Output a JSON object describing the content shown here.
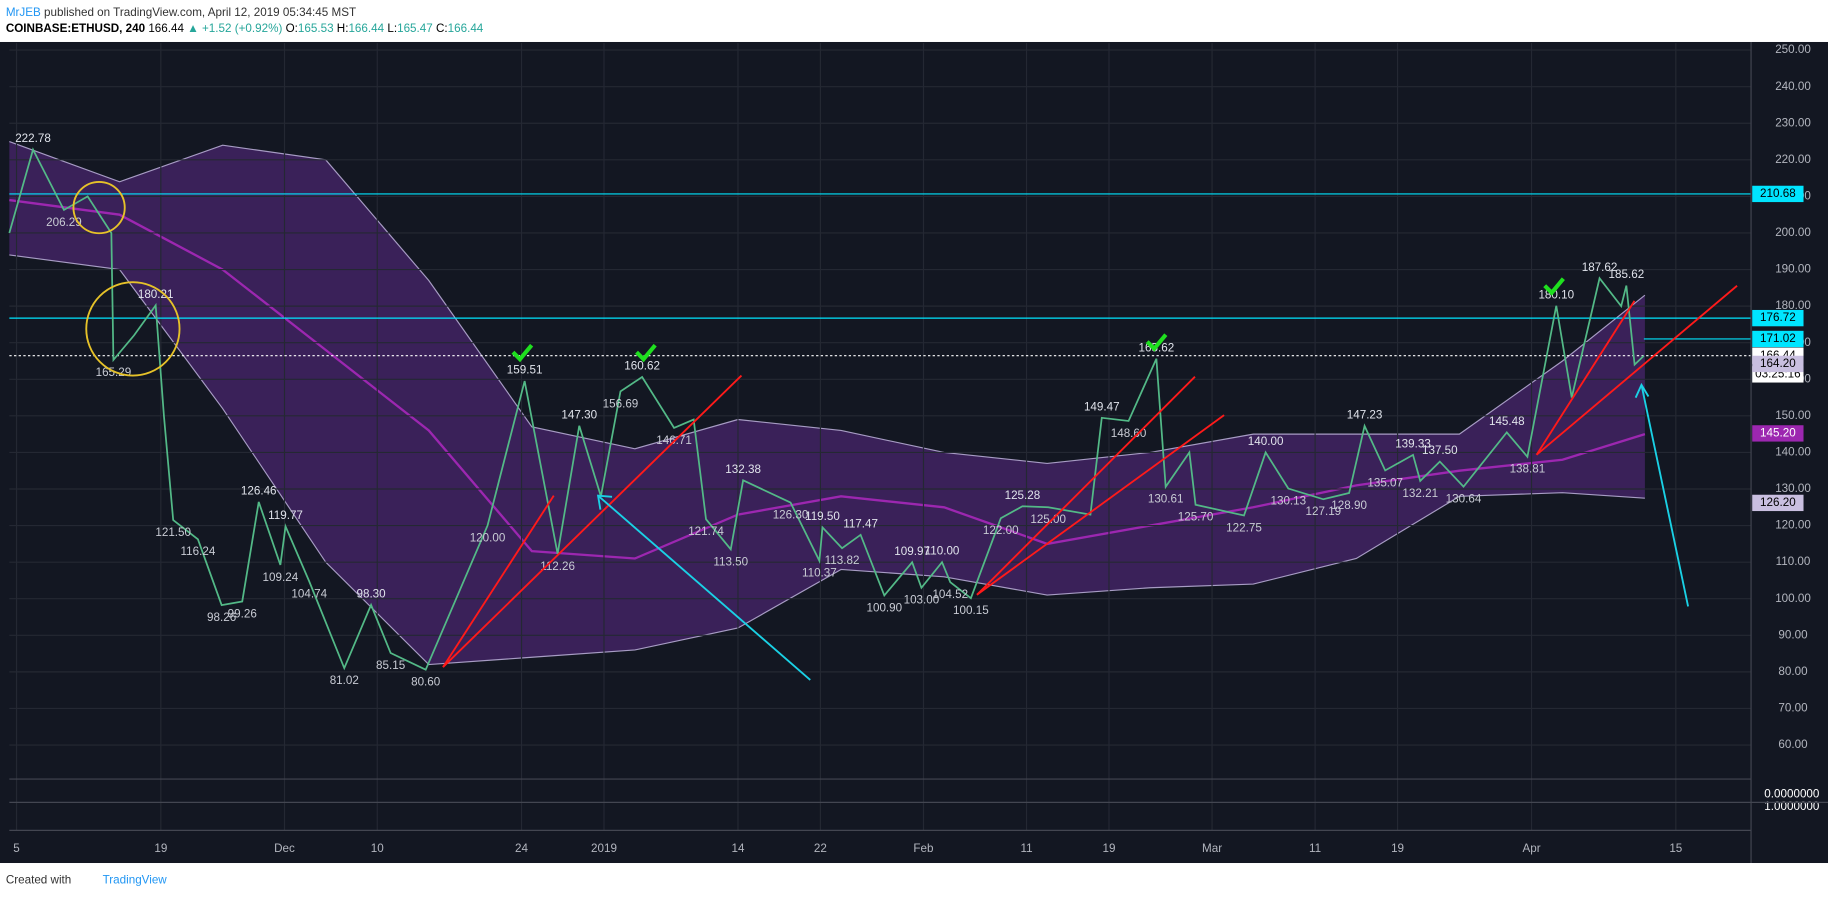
{
  "header": {
    "author": "MrJEB",
    "published": "published on TradingView.com, April 12, 2019 05:34:45 MST",
    "symbol": "COINBASE:ETHUSD, 240",
    "last": 166.44,
    "change": "▲ +1.52 (+0.92%)",
    "open_label": "O:",
    "open": 165.53,
    "high_label": "H:",
    "high": 166.44,
    "low_label": "L:",
    "low": 165.47,
    "close_label": "C:",
    "close": 166.44
  },
  "chart_data": {
    "type": "line",
    "xlim": [
      -0.7,
      168.3
    ],
    "ylim": [
      50.7,
      251.9
    ],
    "grid": true,
    "xticks": [
      {
        "value": 0,
        "label": "5"
      },
      {
        "value": 14,
        "label": "19"
      },
      {
        "value": 26,
        "label": "Dec"
      },
      {
        "value": 35,
        "label": "10"
      },
      {
        "value": 49,
        "label": "24"
      },
      {
        "value": 57,
        "label": "2019"
      },
      {
        "value": 70,
        "label": "14"
      },
      {
        "value": 78,
        "label": "22"
      },
      {
        "value": 88,
        "label": "Feb"
      },
      {
        "value": 98,
        "label": "11"
      },
      {
        "value": 106,
        "label": "19"
      },
      {
        "value": 116,
        "label": "Mar"
      },
      {
        "value": 126,
        "label": "11"
      },
      {
        "value": 134,
        "label": "19"
      },
      {
        "value": 147,
        "label": "Apr"
      },
      {
        "value": 161,
        "label": "15"
      }
    ],
    "yticks": [
      {
        "value": 60,
        "label": "60.00"
      },
      {
        "value": 70,
        "label": "70.00"
      },
      {
        "value": 80,
        "label": "80.00"
      },
      {
        "value": 90,
        "label": "90.00"
      },
      {
        "value": 100,
        "label": "100.00"
      },
      {
        "value": 110,
        "label": "110.00"
      },
      {
        "value": 120,
        "label": "120.00"
      },
      {
        "value": 130,
        "label": "130.00"
      },
      {
        "value": 140,
        "label": "140.00"
      },
      {
        "value": 150,
        "label": "150.00"
      },
      {
        "value": 160,
        "label": "160.00"
      },
      {
        "value": 170,
        "label": "170.00"
      },
      {
        "value": 180,
        "label": "180.00"
      },
      {
        "value": 190,
        "label": "190.00"
      },
      {
        "value": 200,
        "label": "200.00"
      },
      {
        "value": 210,
        "label": "210.00"
      },
      {
        "value": 220,
        "label": "220.00"
      },
      {
        "value": 230,
        "label": "230.00"
      },
      {
        "value": 240,
        "label": "240.00"
      },
      {
        "value": 250,
        "label": "250.00"
      }
    ],
    "pane2_ticks": [
      {
        "value": 0,
        "label": "0.0000000"
      },
      {
        "value": 1,
        "label": "1.0000000"
      }
    ],
    "series": [
      {
        "color": "#53b987",
        "x": [
          -0.7,
          1.6,
          4.6,
          6.9,
          9.2,
          9.4,
          11.4,
          13.5,
          14.3,
          15.2,
          17.6,
          19.9,
          21.9,
          23.5,
          25.6,
          26.1,
          28.4,
          31.8,
          34.4,
          36.3,
          39.7,
          45.7,
          49.3,
          52.5,
          54.6,
          56.7,
          58.6,
          60.7,
          63.8,
          65.7,
          66.9,
          69.3,
          70.5,
          75.1,
          77.9,
          78.2,
          80.1,
          81.9,
          84.2,
          86.9,
          87.8,
          89.8,
          90.6,
          92.6,
          95.5,
          97.6,
          100.1,
          104.2,
          105.3,
          107.9,
          110.6,
          111.5,
          113.8,
          114.4,
          119.1,
          121.2,
          123.4,
          126.8,
          129.3,
          130.8,
          132.8,
          135.5,
          136.2,
          138.1,
          140.4,
          144.6,
          146.6,
          149.4,
          150.9,
          153.6,
          155.7,
          156.2,
          157.0,
          157.9
        ],
        "values": [
          200,
          222.78,
          206.29,
          210,
          200,
          165.29,
          172,
          180.21,
          150,
          121.5,
          116.24,
          98.26,
          99.26,
          126.46,
          109.24,
          119.77,
          104.74,
          81.02,
          98.3,
          85.15,
          80.6,
          120,
          159.51,
          112.26,
          147.3,
          128,
          156.69,
          160.62,
          146.71,
          149,
          121.74,
          113.5,
          132.38,
          126.3,
          110.37,
          119.5,
          113.82,
          117.47,
          100.9,
          109.97,
          103,
          110,
          104.52,
          100.15,
          122,
          125.28,
          125,
          123,
          149.47,
          148.6,
          165.62,
          130.61,
          140,
          125.7,
          122.75,
          140,
          130.13,
          127.19,
          128.9,
          147.23,
          135.07,
          139.33,
          132.21,
          137.5,
          130.64,
          145.48,
          138.81,
          180.1,
          155,
          187.62,
          180,
          185.62,
          164,
          166.44
        ],
        "value_labels": [
          null,
          "222.78",
          "206.29",
          null,
          null,
          "165.29",
          null,
          "180.21",
          null,
          "121.50",
          "116.24",
          "98.26",
          "99.26",
          "126.46",
          "109.24",
          "119.77",
          "104.74",
          "81.02",
          "98.30",
          "85.15",
          "80.60",
          "120.00",
          "159.51",
          "112.26",
          "147.30",
          null,
          "156.69",
          "160.62",
          "146.71",
          null,
          "121.74",
          "113.50",
          "132.38",
          "126.30",
          "110.37",
          "119.50",
          "113.82",
          "117.47",
          "100.90",
          "109.97",
          "103.00",
          "110.00",
          "104.52",
          "100.15",
          "122.00",
          "125.28",
          "125.00",
          null,
          "149.47",
          "148.60",
          "165.62",
          "130.61",
          null,
          "125.70",
          "122.75",
          "140.00",
          "130.13",
          "127.19",
          "128.90",
          "147.23",
          "135.07",
          "139.33",
          "132.21",
          "137.50",
          "130.64",
          "145.48",
          "138.81",
          "180.10",
          null,
          "187.62",
          null,
          "185.62",
          null,
          null
        ]
      }
    ],
    "bands": {
      "fill": "#5b2a86",
      "edge_color": "#a79cc4",
      "middle_color": "#9c27b0",
      "x": [
        -0.7,
        10,
        20,
        30,
        40,
        50,
        60,
        70,
        80,
        90,
        100,
        110,
        120,
        130,
        140,
        150,
        158
      ],
      "upper": [
        225,
        214,
        224,
        220,
        187,
        147,
        141,
        149,
        146,
        140,
        137,
        140,
        145,
        145,
        145,
        165,
        183
      ],
      "lower": [
        194,
        190,
        152,
        110,
        82,
        84,
        86,
        92,
        108,
        106,
        101,
        103,
        104,
        111,
        128,
        129,
        127.5
      ],
      "middle": [
        209,
        205,
        190,
        168,
        146,
        113,
        111,
        123,
        128,
        125,
        115,
        120,
        125,
        131,
        135,
        138,
        145
      ]
    },
    "levels": [
      {
        "value": 210.68,
        "color": "#00e5ff",
        "span": "full"
      },
      {
        "value": 176.72,
        "color": "#00e5ff",
        "span": "full"
      },
      {
        "value": 171.02,
        "color": "#00e5ff",
        "span": "short"
      },
      {
        "value": 166.44,
        "color": "#ffffff",
        "span": "dotted"
      }
    ],
    "axis_tags": [
      {
        "value": 164.2,
        "label": "164.20",
        "color": "#c9bfe0"
      },
      {
        "value": 145.2,
        "label": "145.20",
        "color": "#9c27b0"
      },
      {
        "value": 126.2,
        "label": "126.20",
        "color": "#c9bfe0"
      }
    ],
    "countdown": "03:25:16"
  },
  "footer": {
    "created": "Created with",
    "brand": "TradingView"
  }
}
